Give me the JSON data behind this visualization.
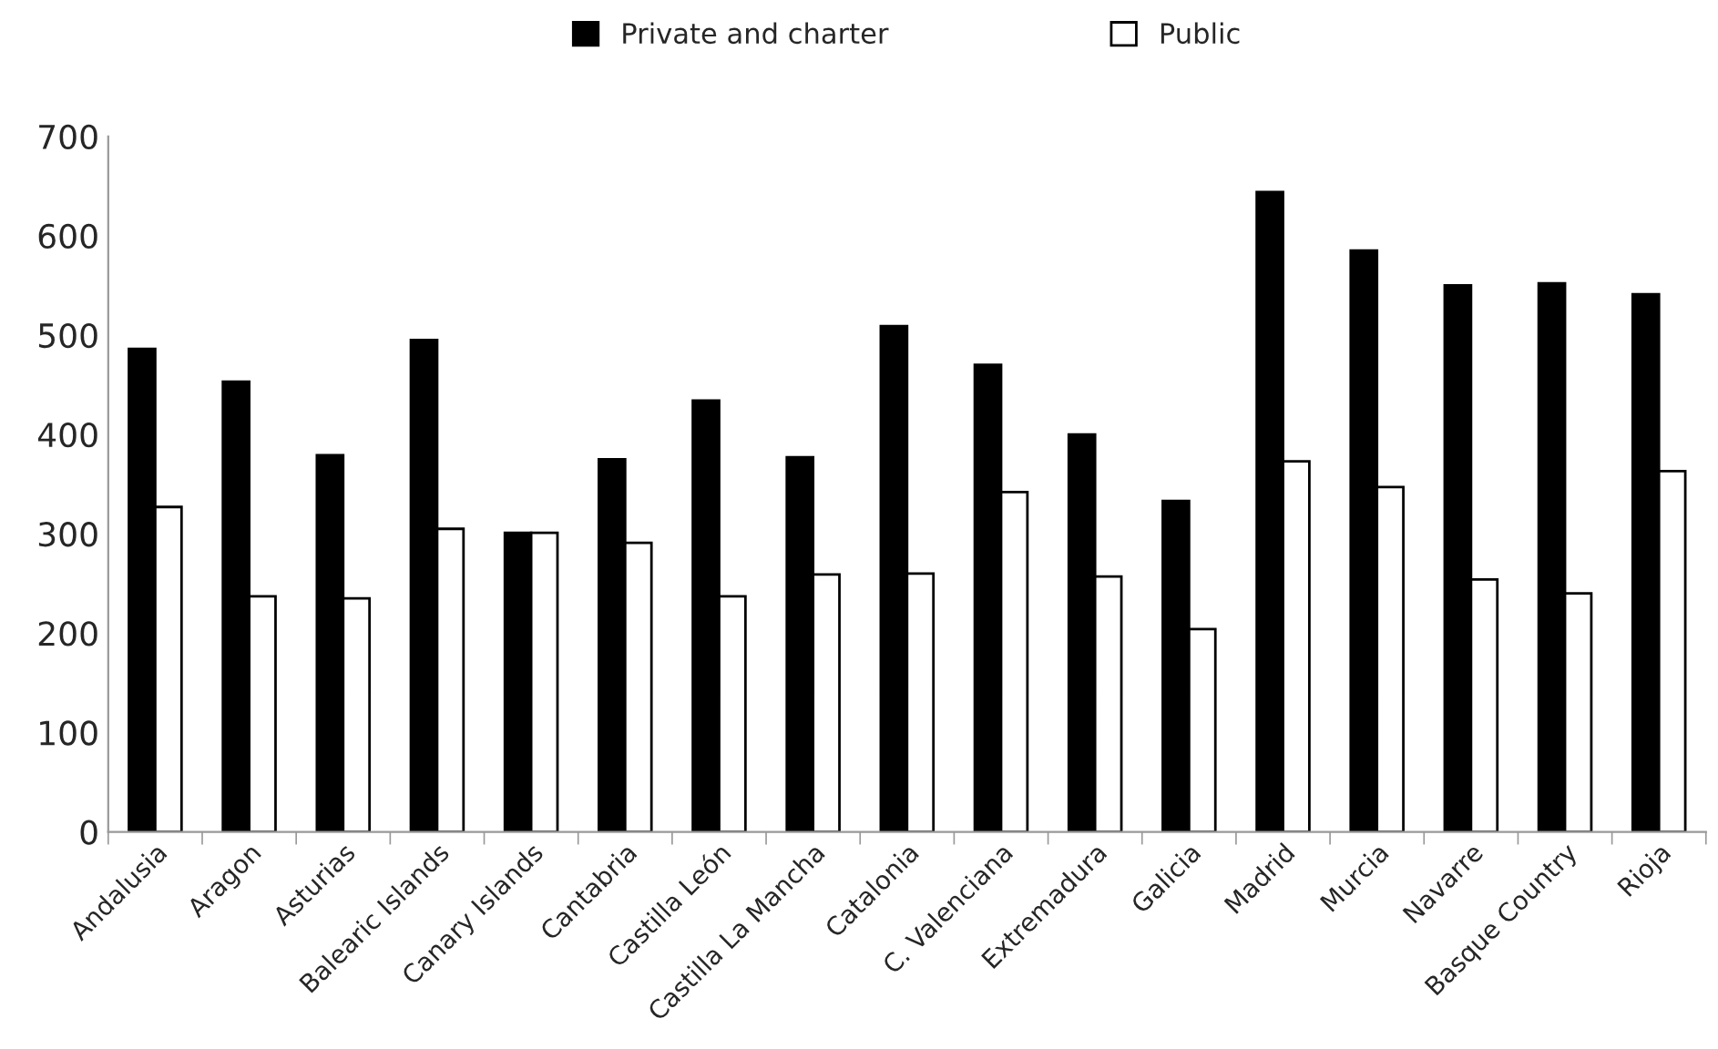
{
  "chart_data": {
    "type": "bar",
    "categories": [
      "Andalusia",
      "Aragon",
      "Asturias",
      "Balearic Islands",
      "Canary Islands",
      "Cantabria",
      "Castilla León",
      "Castilla La Mancha",
      "Catalonia",
      "C. Valenciana",
      "Extremadura",
      "Galicia",
      "Madrid",
      "Murcia",
      "Navarre",
      "Basque Country",
      "Rioja"
    ],
    "series": [
      {
        "name": "Private and charter",
        "color": "#000000",
        "values": [
          486,
          453,
          379,
          495,
          301,
          375,
          434,
          377,
          509,
          470,
          400,
          333,
          644,
          585,
          550,
          552,
          541
        ]
      },
      {
        "name": "Public",
        "color": "#ffffff",
        "values": [
          327,
          237,
          235,
          305,
          301,
          291,
          237,
          259,
          260,
          342,
          257,
          204,
          373,
          347,
          254,
          240,
          363
        ]
      }
    ],
    "ylim": [
      0,
      700
    ],
    "yticks": [
      0,
      100,
      200,
      300,
      400,
      500,
      600,
      700
    ],
    "grid": false,
    "legend": "top"
  }
}
